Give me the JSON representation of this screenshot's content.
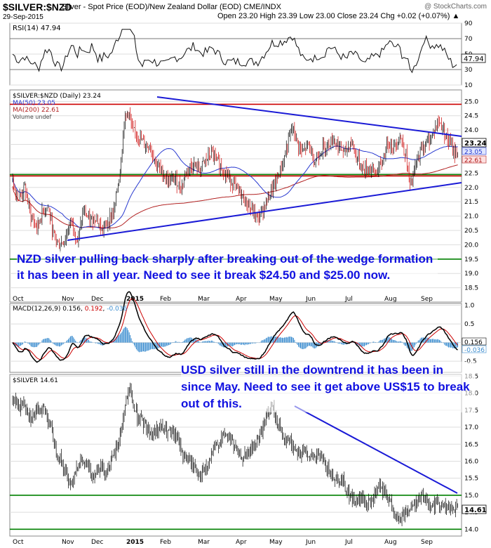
{
  "header": {
    "symbol": "$SILVER:$NZD",
    "title": "Silver - Spot Price (EOD)/New Zealand Dollar (EOD) CME/INDX",
    "date": "29-Sep-2015",
    "ohlc": "Open 23.20  High 23.39  Low 23.00  Close 23.24  Chg +0.02 (+0.07%) ▲",
    "brand": "@ StockCharts.com"
  },
  "colors": {
    "candle_up": "#000000",
    "candle_down": "#cc0000",
    "trend_blue": "#1a1ad6",
    "support_green": "#008000",
    "resistance_red": "#cc0000",
    "ma50": "#2a3bd0",
    "ma200": "#b22222",
    "annotation": "#1010e0"
  },
  "chart_data": [
    {
      "type": "line",
      "panel": "RSI",
      "label": "RSI(14) 47.94",
      "y_ticks": [
        "90",
        "70",
        "50",
        "30",
        "10"
      ],
      "ylim": [
        10,
        90
      ],
      "last_value": "47.94"
    },
    {
      "type": "candlestick",
      "panel": "price",
      "title": "$SILVER:$NZD (Daily) 23.24",
      "legend": [
        "MA(50) 23.05",
        "MA(200) 22.61",
        "Volume undef"
      ],
      "y_ticks": [
        "25.0",
        "24.5",
        "24.0",
        "23.5",
        "23.0",
        "22.5",
        "22.0",
        "21.5",
        "21.0",
        "20.5",
        "20.0",
        "19.5",
        "19.0",
        "18.5"
      ],
      "ylim": [
        18.0,
        25.4
      ],
      "x_labels": [
        "Oct",
        "Nov",
        "Dec",
        "2015",
        "Feb",
        "Mar",
        "Apr",
        "May",
        "Jun",
        "Jul",
        "Aug",
        "Sep"
      ],
      "markers": {
        "close": "23.24",
        "ma50": "23.05",
        "ma200": "22.61"
      },
      "horizontal_lines": [
        {
          "value": 24.9,
          "color": "red"
        },
        {
          "value": 22.4,
          "color": "red"
        },
        {
          "value": 22.45,
          "color": "green"
        },
        {
          "value": 19.5,
          "color": "green"
        }
      ],
      "annotation": "NZD silver pulling back sharply after breaking out of the wedge formation it has been in all year. Need to see it break $24.50 and $25.00 now."
    },
    {
      "type": "line",
      "panel": "MACD",
      "label_prefix": "MACD(12,26,9) 0.156, ",
      "label_signal": "0.192",
      "label_hist": "-0.036",
      "y_ticks": [
        "1.0",
        "0.5",
        "0.0",
        "-0.5"
      ],
      "ylim": [
        -0.8,
        1.05
      ],
      "markers": {
        "macd": "0.156",
        "hist": "-0.036"
      }
    },
    {
      "type": "candlestick",
      "panel": "usd",
      "title": "$SILVER 14.61",
      "y_ticks": [
        "18.5",
        "18.0",
        "17.5",
        "17.0",
        "16.5",
        "16.0",
        "15.5",
        "15.0",
        "14.5",
        "14.0"
      ],
      "ylim": [
        13.8,
        18.55
      ],
      "x_labels": [
        "Oct",
        "Nov",
        "Dec",
        "2015",
        "Feb",
        "Mar",
        "Apr",
        "May",
        "Jun",
        "Jul",
        "Aug",
        "Sep"
      ],
      "markers": {
        "close": "14.61"
      },
      "horizontal_lines": [
        {
          "value": 15.0,
          "color": "green"
        },
        {
          "value": 14.0,
          "color": "green"
        }
      ],
      "annotation": "USD silver still in the downtrend it has been in since May. Need to see it get above US$15 to break out of this."
    }
  ],
  "series_shape": {
    "nzd_close": [
      [
        0,
        22.2
      ],
      [
        6,
        21.6
      ],
      [
        12,
        22.0
      ],
      [
        18,
        21.0
      ],
      [
        24,
        20.6
      ],
      [
        30,
        21.2
      ],
      [
        35,
        21.3
      ],
      [
        40,
        20.4
      ],
      [
        46,
        20.0
      ],
      [
        52,
        20.2
      ],
      [
        58,
        20.9
      ],
      [
        64,
        20.1
      ],
      [
        70,
        21.2
      ],
      [
        76,
        20.8
      ],
      [
        82,
        21.0
      ],
      [
        88,
        20.5
      ],
      [
        94,
        20.8
      ],
      [
        100,
        21.2
      ],
      [
        106,
        22.6
      ],
      [
        110,
        24.3
      ],
      [
        114,
        24.7
      ],
      [
        118,
        24.0
      ],
      [
        124,
        23.8
      ],
      [
        130,
        23.5
      ],
      [
        136,
        23.4
      ],
      [
        142,
        22.8
      ],
      [
        148,
        22.5
      ],
      [
        154,
        22.2
      ],
      [
        160,
        22.3
      ],
      [
        166,
        22.0
      ],
      [
        172,
        22.6
      ],
      [
        178,
        22.8
      ],
      [
        184,
        22.6
      ],
      [
        190,
        22.9
      ],
      [
        196,
        23.2
      ],
      [
        202,
        22.9
      ],
      [
        208,
        22.6
      ],
      [
        214,
        22.3
      ],
      [
        220,
        22.0
      ],
      [
        226,
        21.7
      ],
      [
        232,
        21.4
      ],
      [
        238,
        21.1
      ],
      [
        242,
        20.9
      ],
      [
        248,
        21.3
      ],
      [
        254,
        21.8
      ],
      [
        260,
        22.2
      ],
      [
        266,
        22.8
      ],
      [
        272,
        23.6
      ],
      [
        276,
        24.1
      ],
      [
        280,
        23.6
      ],
      [
        286,
        23.2
      ],
      [
        292,
        23.5
      ],
      [
        298,
        22.9
      ],
      [
        304,
        23.3
      ],
      [
        310,
        23.5
      ],
      [
        316,
        23.7
      ],
      [
        322,
        23.4
      ],
      [
        328,
        23.2
      ],
      [
        334,
        23.6
      ],
      [
        340,
        23.0
      ],
      [
        346,
        22.6
      ],
      [
        352,
        22.7
      ],
      [
        358,
        22.5
      ],
      [
        364,
        22.8
      ],
      [
        370,
        23.6
      ],
      [
        376,
        23.4
      ],
      [
        382,
        23.8
      ],
      [
        388,
        23.1
      ],
      [
        392,
        22.0
      ],
      [
        398,
        22.8
      ],
      [
        404,
        23.4
      ],
      [
        410,
        23.6
      ],
      [
        416,
        24.0
      ],
      [
        420,
        24.3
      ],
      [
        424,
        24.1
      ],
      [
        430,
        23.6
      ],
      [
        436,
        23.2
      ]
    ],
    "usd_close": [
      [
        0,
        17.8
      ],
      [
        6,
        17.6
      ],
      [
        12,
        17.7
      ],
      [
        18,
        17.3
      ],
      [
        24,
        17.4
      ],
      [
        30,
        17.6
      ],
      [
        36,
        17.2
      ],
      [
        42,
        16.4
      ],
      [
        48,
        16.0
      ],
      [
        54,
        15.5
      ],
      [
        58,
        15.3
      ],
      [
        62,
        15.8
      ],
      [
        68,
        16.0
      ],
      [
        74,
        15.8
      ],
      [
        80,
        15.6
      ],
      [
        86,
        15.9
      ],
      [
        92,
        15.7
      ],
      [
        98,
        16.0
      ],
      [
        104,
        16.5
      ],
      [
        108,
        17.1
      ],
      [
        112,
        17.8
      ],
      [
        116,
        18.1
      ],
      [
        120,
        17.5
      ],
      [
        126,
        17.2
      ],
      [
        132,
        17.0
      ],
      [
        138,
        16.8
      ],
      [
        144,
        17.0
      ],
      [
        150,
        16.9
      ],
      [
        156,
        16.8
      ],
      [
        162,
        16.7
      ],
      [
        168,
        16.2
      ],
      [
        174,
        16.0
      ],
      [
        180,
        15.8
      ],
      [
        186,
        15.6
      ],
      [
        192,
        15.8
      ],
      [
        198,
        16.3
      ],
      [
        204,
        16.6
      ],
      [
        210,
        16.8
      ],
      [
        216,
        16.6
      ],
      [
        222,
        16.2
      ],
      [
        228,
        16.1
      ],
      [
        234,
        16.3
      ],
      [
        240,
        16.5
      ],
      [
        246,
        16.9
      ],
      [
        250,
        17.3
      ],
      [
        256,
        17.6
      ],
      [
        260,
        17.2
      ],
      [
        266,
        16.8
      ],
      [
        272,
        16.6
      ],
      [
        278,
        16.4
      ],
      [
        284,
        16.2
      ],
      [
        290,
        16.3
      ],
      [
        296,
        16.0
      ],
      [
        302,
        16.2
      ],
      [
        308,
        15.9
      ],
      [
        314,
        15.6
      ],
      [
        320,
        15.5
      ],
      [
        326,
        15.4
      ],
      [
        332,
        15.0
      ],
      [
        338,
        14.8
      ],
      [
        344,
        14.9
      ],
      [
        350,
        14.7
      ],
      [
        356,
        14.9
      ],
      [
        362,
        15.2
      ],
      [
        368,
        15.0
      ],
      [
        374,
        14.7
      ],
      [
        380,
        14.2
      ],
      [
        386,
        14.5
      ],
      [
        392,
        14.6
      ],
      [
        398,
        14.8
      ],
      [
        404,
        15.0
      ],
      [
        410,
        14.8
      ],
      [
        416,
        14.7
      ],
      [
        422,
        14.8
      ],
      [
        428,
        14.6
      ],
      [
        434,
        14.6
      ]
    ]
  }
}
